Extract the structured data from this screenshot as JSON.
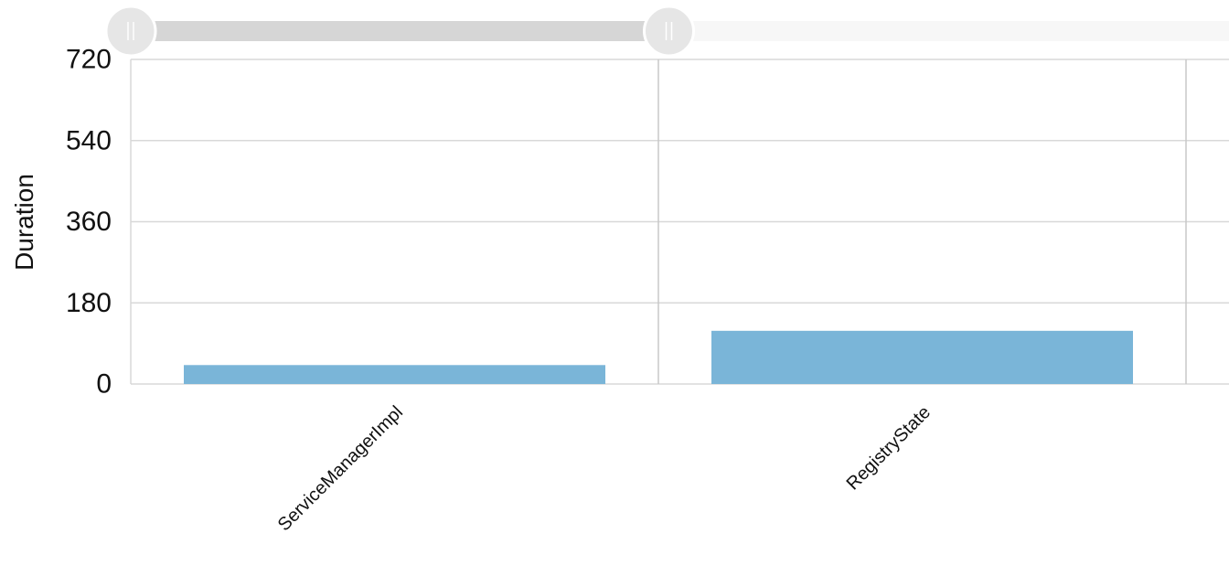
{
  "colors": {
    "bar": "#7ab5d8",
    "grid": "#d8d8d8",
    "divider": "#c8c8c8",
    "slider_track_selected": "#d6d6d6",
    "slider_track_unselected": "#f7f7f7",
    "slider_handle": "#e6e6e6"
  },
  "range_slider": {
    "handle_icon": "grip-lines-icon",
    "selected_start": 0.0,
    "selected_end": 0.49
  },
  "chart_data": {
    "type": "bar",
    "title": "",
    "xlabel": "",
    "ylabel": "Duration",
    "categories": [
      "ServiceManagerImpl",
      "RegistryState"
    ],
    "values": [
      42,
      118
    ],
    "ylim": [
      0,
      720
    ],
    "yticks": [
      0,
      180,
      360,
      540,
      720
    ],
    "grid": true,
    "legend": "none"
  }
}
